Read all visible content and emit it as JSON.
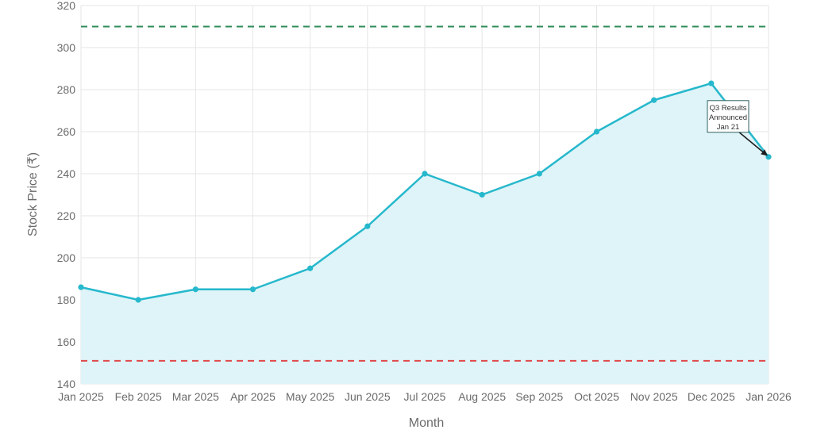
{
  "chart_data": {
    "type": "area",
    "title": "",
    "xlabel": "Month",
    "ylabel": "Stock Price (₹)",
    "categories": [
      "Jan 2025",
      "Feb 2025",
      "Mar 2025",
      "Apr 2025",
      "May 2025",
      "Jun 2025",
      "Jul 2025",
      "Aug 2025",
      "Sep 2025",
      "Oct 2025",
      "Nov 2025",
      "Dec 2025",
      "Jan 2026"
    ],
    "series": [
      {
        "values": [
          186,
          180,
          185,
          185,
          195,
          215,
          240,
          230,
          240,
          260,
          275,
          283,
          248
        ],
        "color": "#26b8cc",
        "fill": "#dcf3f8"
      }
    ],
    "ylim": [
      140,
      320
    ],
    "yticks": [
      140,
      160,
      180,
      200,
      220,
      240,
      260,
      280,
      300,
      320
    ],
    "grid": true,
    "reference_lines": [
      {
        "y": 310,
        "color": "#2e8b57",
        "style": "dashed"
      },
      {
        "y": 151,
        "color": "#e0484a",
        "style": "dashed"
      }
    ],
    "annotation": {
      "lines": [
        "Q3 Results",
        "Announced",
        "Jan 21"
      ],
      "target_category": "Jan 2026",
      "target_value": 248
    }
  }
}
